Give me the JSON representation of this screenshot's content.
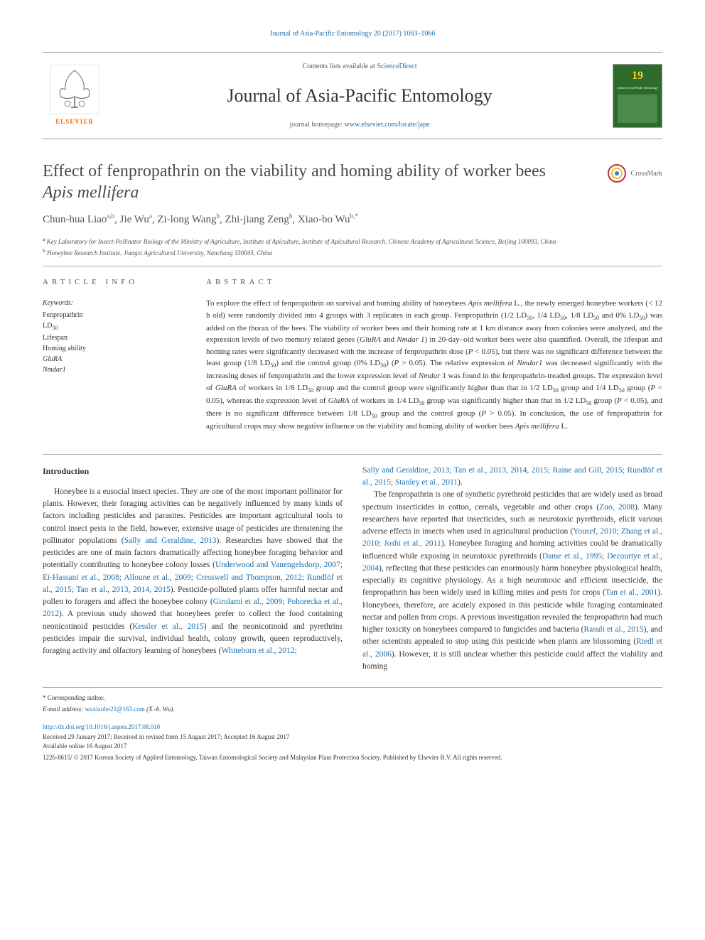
{
  "topLink": {
    "text": "Journal of Asia-Pacific Entomology 20 (2017) 1063–1066",
    "href": "#"
  },
  "header": {
    "contentsPrefix": "Contents lists available at ",
    "contentsLink": "ScienceDirect",
    "journalName": "Journal of Asia-Pacific Entomology",
    "homepagePrefix": "journal homepage: ",
    "homepageLink": "www.elsevier.com/locate/jape",
    "publisherName": "ELSEVIER",
    "coverYear": "19",
    "coverTitle": "Journal of Asia-Pacific Entomology"
  },
  "article": {
    "titleLine1": "Effect of fenpropathrin on the viability and homing ability of worker bees",
    "titleSpecies": "Apis mellifera",
    "crossmarkText": "CrossMark",
    "authorsParts": [
      {
        "name": "Chun-hua Liao",
        "aff": "a,b"
      },
      {
        "name": "Jie Wu",
        "aff": "a"
      },
      {
        "name": "Zi-long Wang",
        "aff": "b"
      },
      {
        "name": "Zhi-jiang Zeng",
        "aff": "b"
      },
      {
        "name": "Xiao-bo Wu",
        "aff": "b,*"
      }
    ],
    "affiliations": {
      "a": "Key Laboratory for Insect-Pollinator Biology of the Ministry of Agriculture, Institute of Apiculture, Institute of Apicultural Research, Chinese Academy of Agricultural Science, Beijing 100093, China",
      "b": "Honeybee Research Institute, Jiangxi Agricultural University, Nanchang 330045, China"
    }
  },
  "info": {
    "heading": "ARTICLE INFO",
    "keywordsLabel": "Keywords:",
    "keywords": [
      "Fenpropathrin",
      "LD<sub>50</sub>",
      "Lifespan",
      "Homing ability",
      "<span class=\"italic\">GluRA</span>",
      "<span class=\"italic\">Nmdar1</span>"
    ]
  },
  "abstract": {
    "heading": "ABSTRACT",
    "text": "To explore the effect of fenpropathrin on survival and homing ability of honeybees <span class=\"italic\">Apis mellifera</span> L., the newly emerged honeybee workers (&lt; 12 h old) were randomly divided into 4 groups with 3 replicates in each group. Fenpropathrin (1/2 LD<sub>50</sub>, 1/4 LD<sub>50</sub>, 1/8 LD<sub>50</sub> and 0% LD<sub>50</sub>) was added on the thorax of the bees. The viability of worker bees and their homing rate at 1 km distance away from colonies were analyzed, and the expression levels of two memory related genes (<span class=\"italic\">GluRA</span> and <span class=\"italic\">Nmdar 1</span>) in 20-day–old worker bees were also quantified. Overall, the lifespan and homing rates were significantly decreased with the increase of fenpropathrin dose (<span class=\"italic\">P</span> &lt; 0.05), but there was no significant difference between the least group (1/8 LD<sub>50</sub>) and the control group (0% LD<sub>50</sub>) (<span class=\"italic\">P</span> &gt; 0.05). The relative expression of <span class=\"italic\">Nmdar1</span> was decreased significantly with the increasing doses of fenpropathrin and the lower expression level of <span class=\"italic\">Nmdar</span> 1 was found in the fenpropathrin-treaded groups. The expression level of <span class=\"italic\">GluRA</span> of workers in 1/8 LD<sub>50</sub> group and the control group were significantly higher than that in 1/2 LD<sub>50</sub> group and 1/4 LD<sub>50</sub> group (<span class=\"italic\">P</span> &lt; 0.05), whereas the expression level of <span class=\"italic\">GluRA</span> of workers in 1/4 LD<sub>50</sub> group was significantly higher than that in 1/2 LD<sub>50</sub> group (<span class=\"italic\">P</span> &lt; 0.05), and there is no significant difference between 1/8 LD<sub>50</sub> group and the control group (<span class=\"italic\">P</span> &gt; 0.05). In conclusion, the use of fenpropathrin for agricultural crops may show negative influence on the viability and homing ability of worker bees <span class=\"italic\">Apis mellifera</span> L."
  },
  "body": {
    "introHeading": "Introduction",
    "col1": "Honeybee is a eusocial insect species. They are one of the most important pollinator for plants. However, their foraging activities can be negatively influenced by many kinds of factors including pesticides and parasites. Pesticides are important agricultural tools to control insect pests in the field, however, extensive usage of pesticides are threatening the pollinator populations (<span class=\"cite\">Sally and Geraldine, 2013</span>). Researches have showed that the pesticides are one of main factors dramatically affecting honeybee foraging behavior and potentially contributing to honeybee colony losses (<span class=\"cite\">Underwood and Vanengelsdorp, 2007; Ei-Hassani et al., 2008; Alloune et al., 2009; Cresswell and Thompson, 2012; Rundlöf et al., 2015; Tan et al., 2013, 2014, 2015</span>). Pesticide-polluted plants offer harmful nectar and pollen to foragers and affect the honeybee colony (<span class=\"cite\">Girolami et al., 2009; Pohorecka et al., 2012</span>). A previous study showed that honeybees prefer to collect the food containing neonicotinoid pesticides (<span class=\"cite\">Kessler et al., 2015</span>) and the neonicotinoid and pyrethrins pesticides impair the survival, individual health, colony growth, queen reproductively, foraging activity and olfactory learning of honeybees (<span class=\"cite\">Whitehorn et al., 2012;</span>",
    "col2top": "<span class=\"cite\">Sally and Geraldine, 2013; Tan et al., 2013, 2014, 2015; Raine and Gill, 2015; Rundlöf et al., 2015; Stanley et al., 2011</span>).",
    "col2": "The fenpropathrin is one of synthetic pyrethroid pesticides that are widely used as broad spectrum insecticides in cotton, cereals, vegetable and other crops (<span class=\"cite\">Zuo, 2008</span>). Many researchers have reported that insecticides, such as neurotoxic pyrethroids, elicit various adverse effects in insects when used in agricultural production (<span class=\"cite\">Yousef, 2010; Zhang et al., 2010; Joshi et al., 2011</span>). Honeybee foraging and homing activities could be dramatically influenced while exposing in neurotoxic pyrethroids (<span class=\"cite\">Dame et al., 1995; Decourtye et al., 2004</span>), reflecting that these pesticides can enormously harm honeybee physiological health, especially its cognitive physiology. As a high neurotoxic and efficient insecticide, the fenpropathrin has been widely used in killing mites and pests for crops (<span class=\"cite\">Tan et al., 2001</span>). Honeybees, therefore, are acutely exposed in this pesticide while foraging contaminated nectar and pollen from crops. A previous investigation revealed the fenpropathrin had much higher toxicity on honeybees compared to fungicides and bacteria (<span class=\"cite\">Rasuli et al., 2015</span>), and other scientists appealed to stop using this pesticide when plants are blossoming (<span class=\"cite\">Riedl et al., 2006</span>). However, it is still unclear whether this pesticide could affect the viability and homing"
  },
  "footer": {
    "corrLabel": "* Corresponding author.",
    "emailLabel": "E-mail address:",
    "email": "wuxiaobo21@163.com",
    "emailSuffix": " (X.-b. Wu).",
    "doi": "http://dx.doi.org/10.1016/j.aspen.2017.08.010",
    "received": "Received 29 January 2017; Received in revised form 15 August 2017; Accepted 16 August 2017",
    "online": "Available online 16 August 2017",
    "copyright": "1226-8615/ © 2017 Korean Society of Applied Entomology, Taiwan Entomological Society and Malaysian Plant Protection Society. Published by Elsevier B.V. All rights reserved."
  },
  "colors": {
    "link": "#1a6faf",
    "text": "#333333",
    "heading": "#555555",
    "elsevierOrange": "#ff6600",
    "coverGreen": "#2d6b2d"
  }
}
